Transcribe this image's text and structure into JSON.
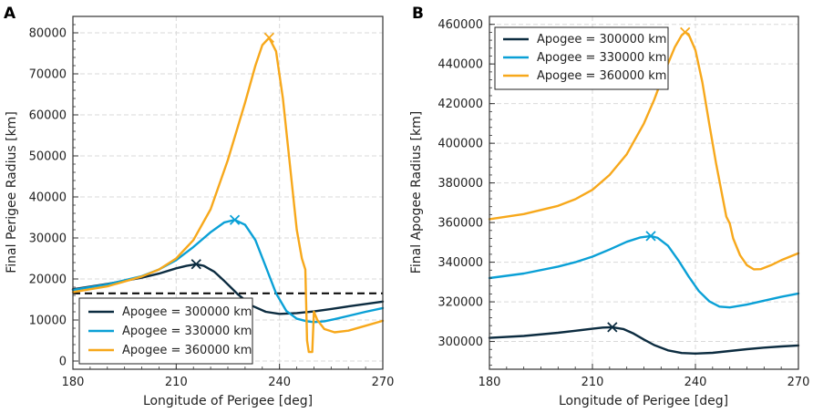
{
  "chart_data": [
    {
      "type": "line",
      "panel": "A",
      "xlabel": "Longitude of Perigee [deg]",
      "ylabel": "Final Perigee Radius [km]",
      "xlim": [
        180,
        270
      ],
      "ylim": [
        -2000,
        84000
      ],
      "xticks": [
        180,
        210,
        240,
        270
      ],
      "xtick_labels": [
        "180",
        "210",
        "240",
        "270"
      ],
      "yticks": [
        0,
        10000,
        20000,
        30000,
        40000,
        50000,
        60000,
        70000,
        80000
      ],
      "ytick_labels": [
        "0",
        "10000",
        "20000",
        "30000",
        "40000",
        "50000",
        "60000",
        "70000",
        "80000"
      ],
      "grid": true,
      "legend_location": "bottom-left",
      "reference_line": {
        "y": 16500,
        "style": "dashed",
        "color": "#000000"
      },
      "series": [
        {
          "name": "Apogee = 300000 km",
          "color": "#0c2c40",
          "x": [
            180,
            190,
            200,
            205,
            210,
            213,
            215.8,
            218,
            221,
            224,
            228,
            232,
            236,
            240,
            245,
            250,
            255,
            260,
            265,
            270
          ],
          "y": [
            17500,
            18800,
            20300,
            21300,
            22600,
            23200,
            23600,
            23200,
            21800,
            19500,
            16200,
            13500,
            12000,
            11500,
            11700,
            12100,
            12700,
            13300,
            13900,
            14500
          ],
          "peak": {
            "x": 215.8,
            "y": 23600
          }
        },
        {
          "name": "Apogee = 330000 km",
          "color": "#0aa0d6",
          "x": [
            180,
            190,
            200,
            205,
            210,
            215,
            220,
            224,
            227,
            230,
            233,
            236,
            239,
            242,
            245,
            248,
            250,
            253,
            256,
            260,
            265,
            270
          ],
          "y": [
            17300,
            18700,
            20700,
            22300,
            24600,
            27800,
            31400,
            33800,
            34400,
            33200,
            29500,
            23000,
            16500,
            12200,
            10300,
            9700,
            9500,
            9700,
            10200,
            11000,
            12000,
            12900
          ],
          "peak": {
            "x": 227,
            "y": 34400
          }
        },
        {
          "name": "Apogee = 360000 km",
          "color": "#f7a81b",
          "x": [
            180,
            190,
            200,
            205,
            210,
            215,
            220,
            225,
            230,
            233,
            235,
            237,
            239,
            241,
            243,
            245,
            246.5,
            247.5,
            248,
            248.5,
            249.5,
            250,
            251,
            253,
            256,
            260,
            265,
            270
          ],
          "y": [
            16800,
            18200,
            20600,
            22300,
            25000,
            29500,
            37000,
            49000,
            63000,
            72000,
            77000,
            78800,
            75500,
            64000,
            48000,
            32000,
            25000,
            22300,
            5000,
            2200,
            2200,
            12000,
            10000,
            7800,
            7000,
            7400,
            8600,
            9800
          ],
          "peak": {
            "x": 237,
            "y": 78800
          }
        }
      ]
    },
    {
      "type": "line",
      "panel": "B",
      "xlabel": "Longitude of Perigee [deg]",
      "ylabel": "Final Apogee Radius [km]",
      "xlim": [
        180,
        270
      ],
      "ylim": [
        286000,
        464000
      ],
      "xticks": [
        180,
        210,
        240,
        270
      ],
      "xtick_labels": [
        "180",
        "210",
        "240",
        "270"
      ],
      "yticks": [
        300000,
        320000,
        340000,
        360000,
        380000,
        400000,
        420000,
        440000,
        460000
      ],
      "ytick_labels": [
        "300000",
        "320000",
        "340000",
        "360000",
        "380000",
        "400000",
        "420000",
        "440000",
        "460000"
      ],
      "grid": true,
      "legend_location": "top-left",
      "series": [
        {
          "name": "Apogee = 300000 km",
          "color": "#0c2c40",
          "x": [
            180,
            190,
            200,
            205,
            210,
            213,
            215.8,
            219,
            222,
            225,
            228,
            232,
            236,
            240,
            245,
            250,
            255,
            260,
            265,
            270
          ],
          "y": [
            301800,
            302800,
            304400,
            305400,
            306400,
            307000,
            307200,
            306300,
            304000,
            301000,
            298200,
            295500,
            294200,
            293900,
            294300,
            295200,
            296100,
            296900,
            297500,
            298000
          ],
          "peak": {
            "x": 215.8,
            "y": 307200
          }
        },
        {
          "name": "Apogee = 330000 km",
          "color": "#0aa0d6",
          "x": [
            180,
            190,
            200,
            205,
            210,
            215,
            220,
            224,
            227,
            229,
            232,
            235,
            238,
            241,
            244,
            247,
            250,
            255,
            260,
            265,
            270
          ],
          "y": [
            332000,
            334300,
            337800,
            340000,
            342800,
            346400,
            350300,
            352500,
            353200,
            352300,
            348300,
            341000,
            332800,
            325400,
            320300,
            317600,
            317200,
            318600,
            320600,
            322500,
            324200
          ],
          "peak": {
            "x": 227,
            "y": 353200
          }
        },
        {
          "name": "Apogee = 360000 km",
          "color": "#f7a81b",
          "x": [
            180,
            190,
            200,
            205,
            210,
            215,
            220,
            225,
            228,
            231,
            234,
            236,
            237,
            238,
            240,
            242,
            244,
            246,
            248,
            249,
            250,
            251,
            253,
            255,
            257,
            259,
            262,
            265,
            270
          ],
          "y": [
            361700,
            364300,
            368400,
            371800,
            376500,
            384000,
            394500,
            410000,
            422000,
            436000,
            448500,
            454500,
            456000,
            455000,
            447000,
            431000,
            410000,
            390000,
            372000,
            363000,
            359500,
            352000,
            343500,
            338500,
            336400,
            336500,
            338500,
            341000,
            344500
          ],
          "peak": {
            "x": 237,
            "y": 456000
          }
        }
      ]
    }
  ]
}
